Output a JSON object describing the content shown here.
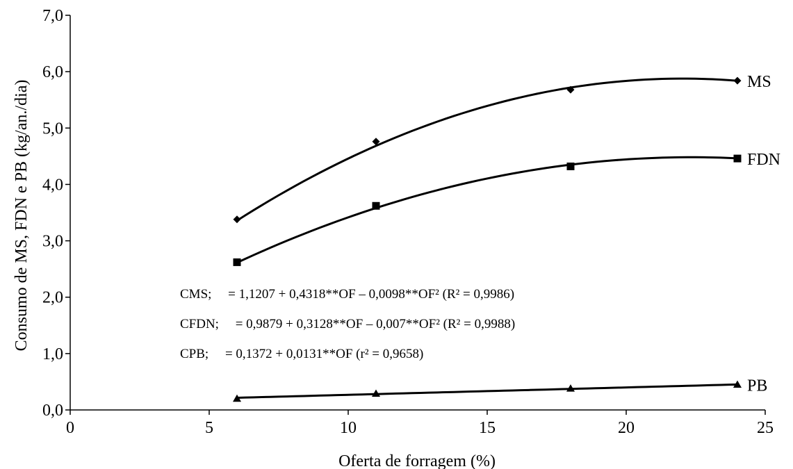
{
  "chart_data": {
    "type": "scatter",
    "title": "",
    "xlabel": "Oferta de forragem (%)",
    "ylabel": "Consumo de MS, FDN e PB (kg/an./dia)",
    "xlim": [
      0,
      25
    ],
    "ylim": [
      0,
      7
    ],
    "grid": false,
    "x_ticks": [
      {
        "value": 0,
        "label": "0"
      },
      {
        "value": 5,
        "label": "5"
      },
      {
        "value": 10,
        "label": "10"
      },
      {
        "value": 15,
        "label": "15"
      },
      {
        "value": 20,
        "label": "20"
      },
      {
        "value": 25,
        "label": "25"
      }
    ],
    "y_ticks": [
      {
        "value": 0,
        "label": "0,0"
      },
      {
        "value": 1,
        "label": "1,0"
      },
      {
        "value": 2,
        "label": "2,0"
      },
      {
        "value": 3,
        "label": "3,0"
      },
      {
        "value": 4,
        "label": "4,0"
      },
      {
        "value": 5,
        "label": "5,0"
      },
      {
        "value": 6,
        "label": "6,0"
      },
      {
        "value": 7,
        "label": "7,0"
      }
    ],
    "series": [
      {
        "name": "MS",
        "marker": "diamond",
        "x": [
          6,
          11,
          18,
          24
        ],
        "y": [
          3.38,
          4.76,
          5.68,
          5.84
        ],
        "fit": {
          "type": "quadratic",
          "a": 1.1207,
          "b": 0.4318,
          "c": -0.0098
        }
      },
      {
        "name": "FDN",
        "marker": "square",
        "x": [
          6,
          11,
          18,
          24
        ],
        "y": [
          2.62,
          3.62,
          4.32,
          4.46
        ],
        "fit": {
          "type": "quadratic",
          "a": 0.9879,
          "b": 0.3128,
          "c": -0.007
        }
      },
      {
        "name": "PB",
        "marker": "triangle",
        "x": [
          6,
          11,
          18,
          24
        ],
        "y": [
          0.2,
          0.29,
          0.38,
          0.45
        ],
        "fit": {
          "type": "linear",
          "a": 0.1372,
          "b": 0.0131
        }
      }
    ],
    "annotations": [
      "CMS;     = 1,1207 + 0,4318**OF – 0,0098**OF² (R² = 0,9986)",
      "CFDN;     = 0,9879 + 0,3128**OF – 0,007**OF² (R² = 0,9988)",
      "CPB;     = 0,1372 + 0,0131**OF (r² = 0,9658)"
    ]
  }
}
